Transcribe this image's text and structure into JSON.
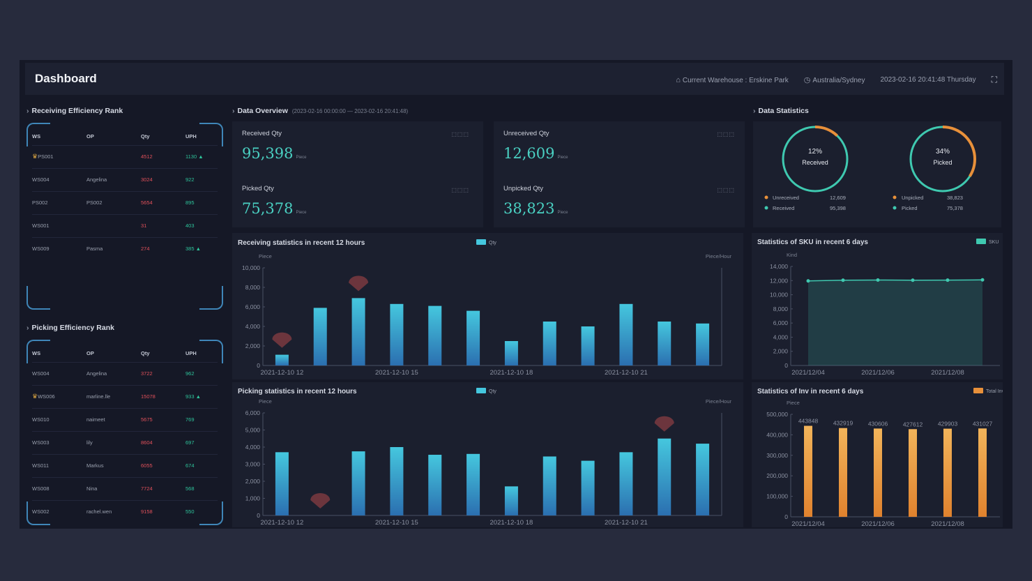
{
  "header": {
    "title": "Dashboard",
    "warehouse": "Current Warehouse : Erskine Park",
    "timezone": "Australia/Sydney",
    "datetime": "2023-02-16 20:41:48 Thursday"
  },
  "receiving_rank": {
    "title": "Receiving Efficiency Rank",
    "columns": [
      "WS",
      "OP",
      "Qty",
      "UPH"
    ],
    "rows": [
      {
        "ws": "PS001",
        "op": "",
        "qty": "4512",
        "uph": "1130"
      },
      {
        "ws": "WS004",
        "op": "Angelina",
        "qty": "3024",
        "uph": "922"
      },
      {
        "ws": "PS002",
        "op": "PS002",
        "qty": "5654",
        "uph": "895"
      },
      {
        "ws": "WS001",
        "op": "",
        "qty": "31",
        "uph": "403"
      },
      {
        "ws": "WS009",
        "op": "Pasma",
        "qty": "274",
        "uph": "385"
      }
    ]
  },
  "picking_rank": {
    "title": "Picking Efficiency Rank",
    "columns": [
      "WS",
      "OP",
      "Qty",
      "UPH"
    ],
    "rows": [
      {
        "ws": "WS004",
        "op": "Angelina",
        "qty": "3722",
        "uph": "962"
      },
      {
        "ws": "WS006",
        "op": "marline.lle",
        "qty": "15078",
        "uph": "933"
      },
      {
        "ws": "WS010",
        "op": "naimeet",
        "qty": "5675",
        "uph": "769"
      },
      {
        "ws": "WS003",
        "op": "lily",
        "qty": "8604",
        "uph": "697"
      },
      {
        "ws": "WS011",
        "op": "Markus",
        "qty": "6055",
        "uph": "674"
      },
      {
        "ws": "WS008",
        "op": "Nina",
        "qty": "7724",
        "uph": "568"
      },
      {
        "ws": "WS002",
        "op": "rachel.wen",
        "qty": "9158",
        "uph": "550"
      }
    ]
  },
  "overview": {
    "title": "Data Overview",
    "range": "(2023-02-16 00:00:00 — 2023-02-16 20:41:48)",
    "unit": "Piece",
    "items": [
      {
        "label": "Received Qty",
        "value": "95,398"
      },
      {
        "label": "Unreceived Qty",
        "value": "12,609"
      },
      {
        "label": "Picked Qty",
        "value": "75,378"
      },
      {
        "label": "Unpicked Qty",
        "value": "38,823"
      }
    ]
  },
  "statistics": {
    "title": "Data Statistics",
    "donuts": [
      {
        "percent_text": "12%",
        "caption": "Received",
        "fraction": 0.12,
        "legend": [
          {
            "name": "Unreceived",
            "value": "12,609",
            "color": "#e8903a"
          },
          {
            "name": "Received",
            "value": "95,398",
            "color": "#3fc9b0"
          }
        ]
      },
      {
        "percent_text": "34%",
        "caption": "Picked",
        "fraction": 0.34,
        "legend": [
          {
            "name": "Unpicked",
            "value": "38,823",
            "color": "#e8903a"
          },
          {
            "name": "Picked",
            "value": "75,378",
            "color": "#3fc9b0"
          }
        ]
      }
    ]
  },
  "colors": {
    "teal": "#3fc9b0",
    "orange": "#e8903a",
    "bar_top": "#45c7de",
    "bar_bottom": "#2b6fb0"
  },
  "chart_data": [
    {
      "type": "bar",
      "title": "Receiving statistics in recent 12 hours",
      "legend": "Qty",
      "ylabel": "Piece",
      "y2label": "Piece/Hour",
      "ylim": [
        0,
        10000
      ],
      "yticks": [
        "0",
        "2,000",
        "4,000",
        "6,000",
        "8,000",
        "10,000"
      ],
      "xticks": [
        "2021-12-10 12",
        "2021-12-10 15",
        "2021-12-10 18",
        "2021-12-10 21"
      ],
      "values": [
        1100,
        5900,
        6900,
        6300,
        6100,
        5600,
        2500,
        4500,
        4000,
        6300,
        4500,
        4300
      ],
      "markers": [
        0,
        2
      ]
    },
    {
      "type": "bar",
      "title": "Picking statistics in recent 12 hours",
      "legend": "Qty",
      "ylabel": "Piece",
      "y2label": "Piece/Hour",
      "ylim": [
        0,
        6000
      ],
      "yticks": [
        "0",
        "1,000",
        "2,000",
        "3,000",
        "4,000",
        "5,000",
        "6,000"
      ],
      "xticks": [
        "2021-12-10 12",
        "2021-12-10 15",
        "2021-12-10 18",
        "2021-12-10 21"
      ],
      "values": [
        3700,
        0,
        3750,
        4000,
        3550,
        3600,
        1700,
        3450,
        3200,
        3700,
        4500,
        4200
      ],
      "markers": [
        1,
        10
      ]
    },
    {
      "type": "area",
      "title": "Statistics of SKU in recent 6 days",
      "legend": "SKU",
      "ylabel": "Kind",
      "ylim": [
        0,
        14000
      ],
      "yticks": [
        "0",
        "2,000",
        "4,000",
        "6,000",
        "8,000",
        "10,000",
        "12,000",
        "14,000"
      ],
      "xticks": [
        "2021/12/04",
        "2021/12/06",
        "2021/12/08"
      ],
      "values": [
        11950,
        12050,
        12080,
        12050,
        12060,
        12100
      ]
    },
    {
      "type": "bar",
      "title": "Statistics of Inv in recent 6 days",
      "legend": "Total Inv",
      "ylabel": "Piece",
      "ylim": [
        0,
        500000
      ],
      "yticks": [
        "0",
        "100,000",
        "200,000",
        "300,000",
        "400,000",
        "500,000"
      ],
      "xticks": [
        "2021/12/04",
        "2021/12/06",
        "2021/12/08"
      ],
      "values": [
        443848,
        432919,
        430606,
        427612,
        429903,
        431027
      ],
      "labels": [
        "443848",
        "432919",
        "430606",
        "427612",
        "429903",
        "431027"
      ]
    }
  ]
}
